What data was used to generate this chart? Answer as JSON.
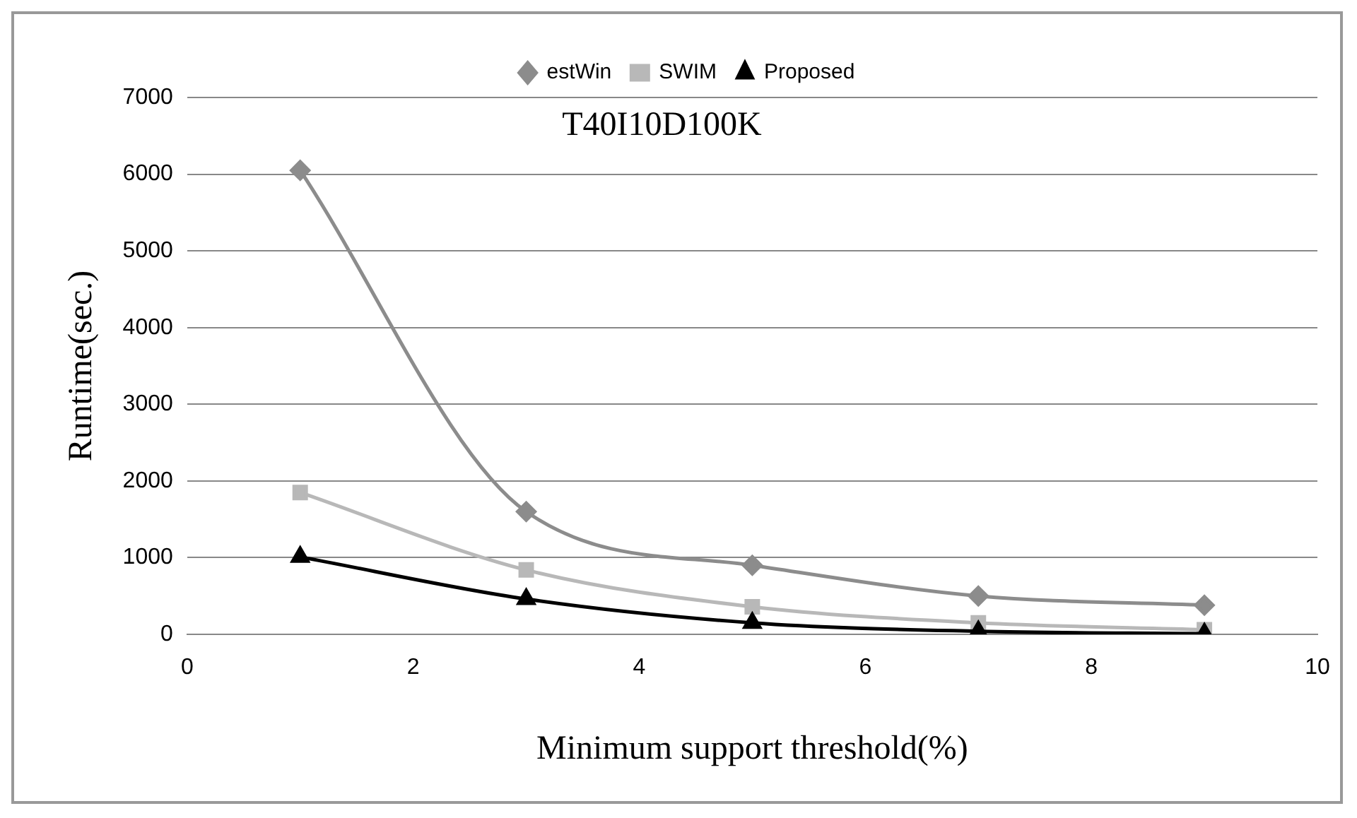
{
  "chart_data": {
    "type": "line",
    "title": "T40I10D100K",
    "xlabel": "Minimum support threshold(%)",
    "ylabel": "Runtime(sec.)",
    "x": [
      1,
      3,
      5,
      7,
      9
    ],
    "series": [
      {
        "name": "estWin",
        "color": "#8c8c8c",
        "marker": "diamond",
        "values": [
          6050,
          1600,
          900,
          500,
          380
        ]
      },
      {
        "name": "SWIM",
        "color": "#b8b8b8",
        "marker": "square",
        "values": [
          1850,
          840,
          360,
          150,
          60
        ]
      },
      {
        "name": "Proposed",
        "color": "#000000",
        "marker": "triangle",
        "values": [
          1010,
          460,
          150,
          40,
          10
        ]
      }
    ],
    "xlim": [
      0,
      10
    ],
    "xticks": [
      0,
      2,
      4,
      6,
      8,
      10
    ],
    "ylim": [
      0,
      7000
    ],
    "yticks": [
      0,
      1000,
      2000,
      3000,
      4000,
      5000,
      6000,
      7000
    ],
    "grid": "y",
    "legend": "top"
  }
}
